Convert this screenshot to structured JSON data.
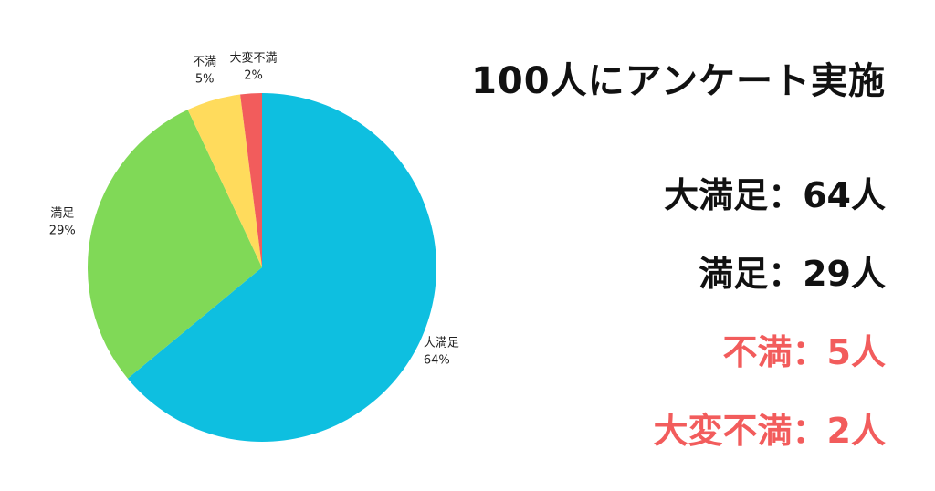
{
  "headline": "100人にアンケート実施",
  "colors": {
    "text_positive": "#111111",
    "text_negative": "#f25c5c"
  },
  "chart_data": {
    "type": "pie",
    "title": "",
    "start_angle_deg": 0,
    "direction": "clockwise",
    "slices": [
      {
        "label": "大満足",
        "value": 64,
        "percent_label": "64%",
        "color": "#0ebfe0"
      },
      {
        "label": "満足",
        "value": 29,
        "percent_label": "29%",
        "color": "#80d957"
      },
      {
        "label": "不満",
        "value": 5,
        "percent_label": "5%",
        "color": "#ffdb5c"
      },
      {
        "label": "大変不満",
        "value": 2,
        "percent_label": "2%",
        "color": "#f25c5c"
      }
    ]
  },
  "summary": [
    {
      "label": "大満足",
      "separator": "：",
      "count": "64人",
      "tone": "positive"
    },
    {
      "label": "満足",
      "separator": "：",
      "count": "29人",
      "tone": "positive"
    },
    {
      "label": "不満",
      "separator": "：",
      "count": "5人",
      "tone": "negative"
    },
    {
      "label": "大変不満",
      "separator": "：",
      "count": "2人",
      "tone": "negative"
    }
  ]
}
